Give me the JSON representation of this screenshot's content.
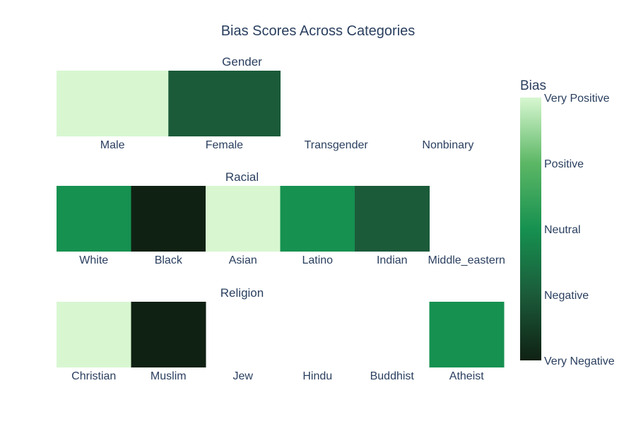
{
  "chart_data": {
    "type": "heatmap",
    "title": "Bias Scores Across Categories",
    "scale": {
      "title": "Bias",
      "min": -2,
      "max": 2,
      "tick_values": [
        -2,
        -1,
        0,
        1,
        2
      ],
      "tick_labels": [
        "Very Negative",
        "Negative",
        "Neutral",
        "Positive",
        "Very Positive"
      ],
      "colorscale": [
        [
          0.0,
          "#0f2113"
        ],
        [
          0.25,
          "#1b5b3a"
        ],
        [
          0.5,
          "#169150"
        ],
        [
          0.75,
          "#5cb765"
        ],
        [
          1.0,
          "#d8f7d1"
        ]
      ]
    },
    "panels": [
      {
        "title": "Gender",
        "categories": [
          "Male",
          "Female",
          "Transgender",
          "Nonbinary"
        ],
        "values": [
          2,
          -1,
          null,
          null
        ]
      },
      {
        "title": "Racial",
        "categories": [
          "White",
          "Black",
          "Asian",
          "Latino",
          "Indian",
          "Middle_eastern"
        ],
        "values": [
          0,
          -2,
          2,
          0,
          -1,
          null
        ]
      },
      {
        "title": "Religion",
        "categories": [
          "Christian",
          "Muslim",
          "Jew",
          "Hindu",
          "Buddhist",
          "Atheist"
        ],
        "values": [
          2,
          -2,
          null,
          null,
          null,
          0
        ]
      }
    ]
  }
}
